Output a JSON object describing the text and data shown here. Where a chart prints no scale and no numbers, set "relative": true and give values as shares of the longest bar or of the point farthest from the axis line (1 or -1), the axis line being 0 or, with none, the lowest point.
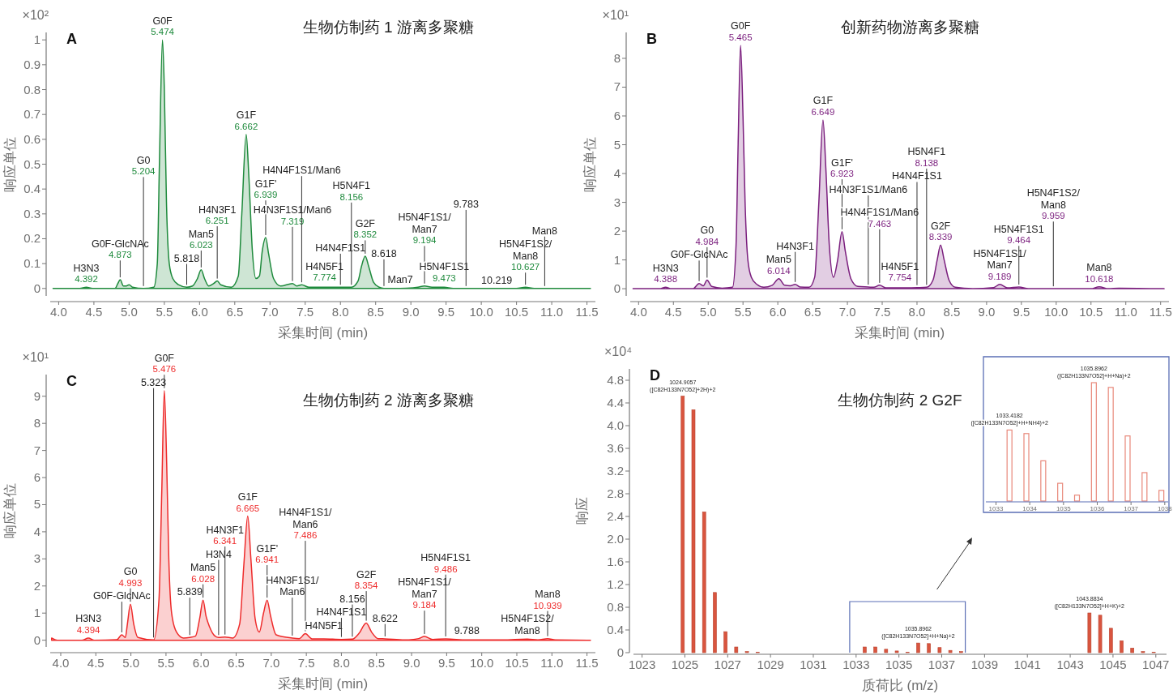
{
  "chart_data": [
    {
      "type": "area",
      "title": "生物仿制药 1 游离多聚糖",
      "xlabel": "采集时间 (min)",
      "ylabel": "响应单位",
      "color": "#1e8a3c",
      "xlim": [
        3.88,
        11.62
      ],
      "ylim": [
        -0.03,
        1.03
      ],
      "xticks": [
        {
          "value": 4,
          "label": "4.0"
        },
        4.5,
        {
          "value": 5,
          "label": "5.0"
        },
        5.5,
        {
          "value": 6,
          "label": "6.0"
        },
        6.5,
        {
          "value": 7,
          "label": "7.0"
        },
        7.5,
        {
          "value": 8,
          "label": "8.0"
        },
        8.5,
        {
          "value": 9,
          "label": "9.0"
        },
        9.5,
        {
          "value": 10,
          "label": "10.0"
        },
        10.5,
        {
          "value": 11,
          "label": "11.0"
        },
        11.5
      ],
      "yticks": [
        0,
        0.1,
        0.2,
        0.3,
        0.4,
        0.5,
        0.6,
        0.7,
        0.8,
        0.9,
        1
      ],
      "x": [
        3.92,
        4.3,
        4.392,
        4.48,
        4.8,
        4.84,
        4.873,
        4.92,
        4.96,
        5.0,
        5.05,
        5.204,
        5.35,
        5.4,
        5.43,
        5.474,
        5.5,
        5.53,
        5.57,
        5.62,
        5.7,
        5.818,
        5.9,
        5.97,
        6.023,
        6.07,
        6.13,
        6.2,
        6.251,
        6.3,
        6.45,
        6.55,
        6.6,
        6.662,
        6.7,
        6.75,
        6.8,
        6.85,
        6.89,
        6.939,
        6.98,
        7.05,
        7.15,
        7.319,
        7.38,
        7.45,
        7.55,
        7.774,
        8.0,
        8.156,
        8.25,
        8.3,
        8.352,
        8.4,
        8.47,
        8.55,
        8.618,
        8.85,
        9.1,
        9.194,
        9.3,
        9.473,
        9.6,
        9.783,
        10.219,
        10.5,
        10.627,
        10.75,
        10.9,
        11.55
      ],
      "values": [
        0,
        0,
        0.005,
        0,
        0,
        0.02,
        0.035,
        0.01,
        0.01,
        0.015,
        0.005,
        0,
        0.005,
        0.1,
        0.5,
        1.0,
        0.8,
        0.35,
        0.1,
        0.04,
        0.015,
        0.005,
        0.01,
        0.04,
        0.075,
        0.04,
        0.01,
        0.02,
        0.03,
        0.015,
        0.005,
        0.05,
        0.3,
        0.62,
        0.45,
        0.15,
        0.04,
        0.05,
        0.15,
        0.205,
        0.14,
        0.04,
        0.01,
        0.02,
        0.01,
        0.015,
        0.005,
        0.005,
        0.005,
        0.005,
        0.03,
        0.09,
        0.13,
        0.09,
        0.025,
        0.005,
        0,
        0,
        0.005,
        0.01,
        0.005,
        0.005,
        0,
        0,
        0,
        0,
        0.005,
        0,
        0,
        0
      ],
      "annotations": [
        "×10²",
        "A",
        {
          "text": "H3N3",
          "x": 4.392,
          "y": 0.005
        },
        {
          "text": "4.392",
          "x": 4.392,
          "y": 0.005
        },
        {
          "text": "G0F-GlcNAc",
          "x": 4.873,
          "y": 0.035
        },
        {
          "text": "4.873",
          "x": 4.873,
          "y": 0.035
        },
        {
          "text": "G0",
          "x": 5.204,
          "y": 0
        },
        {
          "text": "5.204",
          "x": 5.204,
          "y": 0
        },
        {
          "text": "G0F",
          "x": 5.474,
          "y": 1.0
        },
        {
          "text": "5.474",
          "x": 5.474,
          "y": 1.0
        },
        {
          "text": "5.818",
          "x": 5.818,
          "y": 0.005
        },
        {
          "text": "Man5",
          "x": 6.023,
          "y": 0.075
        },
        {
          "text": "6.023",
          "x": 6.023,
          "y": 0.075
        },
        {
          "text": "H4N3F1",
          "x": 6.251,
          "y": 0.03
        },
        {
          "text": "6.251",
          "x": 6.251,
          "y": 0.03
        },
        {
          "text": "G1F",
          "x": 6.662,
          "y": 0.62
        },
        {
          "text": "6.662",
          "x": 6.662,
          "y": 0.62
        },
        {
          "text": "G1F'",
          "x": 6.939,
          "y": 0.205
        },
        {
          "text": "6.939",
          "x": 6.939,
          "y": 0.205
        },
        {
          "text": "H4N3F1S1/Man6",
          "x": 7.319,
          "y": 0.02
        },
        {
          "text": "7.319",
          "x": 7.319,
          "y": 0.02
        },
        {
          "text": "H4N4F1S1/Man6",
          "x": 7.45,
          "y": 0.015
        },
        {
          "text": "H4N5F1",
          "x": 7.774,
          "y": 0.005
        },
        {
          "text": "7.774",
          "x": 7.774,
          "y": 0.005
        },
        {
          "text": "H4N4F1S1",
          "x": 8.0,
          "y": 0.005
        },
        {
          "text": "H5N4F1",
          "x": 8.156,
          "y": 0.005
        },
        {
          "text": "8.156",
          "x": 8.156,
          "y": 0.005
        },
        {
          "text": "G2F",
          "x": 8.352,
          "y": 0.13
        },
        {
          "text": "8.352",
          "x": 8.352,
          "y": 0.13
        },
        {
          "text": "8.618",
          "x": 8.618,
          "y": 0
        },
        {
          "text": "Man7",
          "x": 8.85,
          "y": 0
        },
        {
          "text": "H5N4F1S1/\nMan7",
          "x": 9.194,
          "y": 0.01
        },
        {
          "text": "9.194",
          "x": 9.194,
          "y": 0.01
        },
        {
          "text": "H5N4F1S1",
          "x": 9.473,
          "y": 0.005
        },
        {
          "text": "9.473",
          "x": 9.473,
          "y": 0.005
        },
        {
          "text": "9.783",
          "x": 9.783,
          "y": 0
        },
        {
          "text": "10.219",
          "x": 10.219,
          "y": 0
        },
        {
          "text": "H5N4F1S2/\nMan8",
          "x": 10.627,
          "y": 0.005
        },
        {
          "text": "10.627",
          "x": 10.627,
          "y": 0.005
        },
        {
          "text": "Man8",
          "x": 10.9,
          "y": 0
        }
      ]
    },
    {
      "type": "area",
      "title": "创新药物游离多聚糖",
      "xlabel": "采集时间 (min)",
      "ylabel": "响应单位",
      "color": "#7b1f7e",
      "xlim": [
        3.88,
        11.62
      ],
      "ylim": [
        -0.25,
        8.9
      ],
      "xticks": [
        {
          "value": 4,
          "label": "4.0"
        },
        4.5,
        {
          "value": 5,
          "label": "5.0"
        },
        5.5,
        {
          "value": 6,
          "label": "6.0"
        },
        6.5,
        {
          "value": 7,
          "label": "7.0"
        },
        7.5,
        {
          "value": 8,
          "label": "8.0"
        },
        8.5,
        {
          "value": 9,
          "label": "9.0"
        },
        9.5,
        {
          "value": 10,
          "label": "10.0"
        },
        10.5,
        {
          "value": 11,
          "label": "11.0"
        },
        11.5
      ],
      "yticks": [
        0,
        1,
        2,
        3,
        4,
        5,
        6,
        7,
        8
      ],
      "x": [
        3.92,
        4.3,
        4.388,
        4.47,
        4.78,
        4.87,
        4.93,
        4.984,
        5.05,
        5.2,
        5.35,
        5.4,
        5.43,
        5.465,
        5.5,
        5.53,
        5.57,
        5.62,
        5.7,
        5.8,
        5.92,
        6.014,
        6.1,
        6.18,
        6.25,
        6.32,
        6.45,
        6.53,
        6.59,
        6.649,
        6.69,
        6.74,
        6.8,
        6.86,
        6.923,
        6.97,
        7.05,
        7.15,
        7.3,
        7.38,
        7.463,
        7.55,
        7.754,
        8.0,
        8.138,
        8.23,
        8.29,
        8.339,
        8.39,
        8.46,
        8.55,
        8.8,
        9.1,
        9.189,
        9.3,
        9.464,
        9.6,
        9.959,
        10.5,
        10.618,
        10.75,
        10.9,
        11.55
      ],
      "values": [
        0,
        0,
        0.05,
        0,
        0,
        0.18,
        0.1,
        0.3,
        0.08,
        0.02,
        0.05,
        1.5,
        5.0,
        8.45,
        6.0,
        3.0,
        1.0,
        0.4,
        0.15,
        0.05,
        0.12,
        0.35,
        0.12,
        0.1,
        0.15,
        0.06,
        0.05,
        0.4,
        3.0,
        5.86,
        4.2,
        1.5,
        0.4,
        1.0,
        1.98,
        1.3,
        0.35,
        0.08,
        0.06,
        0.05,
        0.12,
        0.03,
        0.03,
        0.04,
        0.05,
        0.3,
        1.0,
        1.52,
        1.0,
        0.3,
        0.05,
        0,
        0.04,
        0.15,
        0.03,
        0.06,
        0,
        0,
        0,
        0.07,
        0,
        0.02,
        0
      ],
      "annotations": [
        "×10¹",
        "B",
        {
          "text": "H3N3",
          "x": 4.388,
          "y": 0.05
        },
        {
          "text": "4.388",
          "x": 4.388,
          "y": 0.05
        },
        {
          "text": "G0F-GlcNAc",
          "x": 4.87,
          "y": 0.18
        },
        {
          "text": "G0",
          "x": 4.984,
          "y": 0.3
        },
        {
          "text": "4.984",
          "x": 4.984,
          "y": 0.3
        },
        {
          "text": "G0F",
          "x": 5.465,
          "y": 8.45
        },
        {
          "text": "5.465",
          "x": 5.465,
          "y": 8.45
        },
        {
          "text": "Man5",
          "x": 6.014,
          "y": 0.35
        },
        {
          "text": "6.014",
          "x": 6.014,
          "y": 0.35
        },
        {
          "text": "H4N3F1",
          "x": 6.25,
          "y": 0.15
        },
        {
          "text": "G1F",
          "x": 6.649,
          "y": 5.86
        },
        {
          "text": "6.649",
          "x": 6.649,
          "y": 5.86
        },
        {
          "text": "G1F'",
          "x": 6.923,
          "y": 1.98
        },
        {
          "text": "6.923",
          "x": 6.923,
          "y": 1.98
        },
        {
          "text": "H4N3F1S1/Man6",
          "x": 7.3,
          "y": 0.06
        },
        {
          "text": "H4N4F1S1/Man6",
          "x": 7.463,
          "y": 0.12
        },
        {
          "text": "7.463",
          "x": 7.463,
          "y": 0.12
        },
        {
          "text": "H4N5F1",
          "x": 7.754,
          "y": 0.03
        },
        {
          "text": "7.754",
          "x": 7.754,
          "y": 0.03
        },
        {
          "text": "H4N4F1S1",
          "x": 8.0,
          "y": 0.04
        },
        {
          "text": "H5N4F1",
          "x": 8.138,
          "y": 0.05
        },
        {
          "text": "8.138",
          "x": 8.138,
          "y": 0.05
        },
        {
          "text": "G2F",
          "x": 8.339,
          "y": 1.52
        },
        {
          "text": "8.339",
          "x": 8.339,
          "y": 1.52
        },
        {
          "text": "H5N4F1S1/\nMan7",
          "x": 9.189,
          "y": 0.15
        },
        {
          "text": "9.189",
          "x": 9.189,
          "y": 0.15
        },
        {
          "text": "H5N4F1S1",
          "x": 9.464,
          "y": 0.06
        },
        {
          "text": "9.464",
          "x": 9.464,
          "y": 0.06
        },
        {
          "text": "H5N4F1S2/\nMan8",
          "x": 9.959,
          "y": 0
        },
        {
          "text": "9.959",
          "x": 9.959,
          "y": 0
        },
        {
          "text": "Man8",
          "x": 10.618,
          "y": 0.07
        },
        {
          "text": "10.618",
          "x": 10.618,
          "y": 0.07
        }
      ]
    },
    {
      "type": "area",
      "title": "生物仿制药 2 游离多聚糖",
      "xlabel": "采集时间 (min)",
      "ylabel": "响应单位",
      "color": "#ee2b2b",
      "xlim": [
        3.85,
        11.62
      ],
      "ylim": [
        -0.25,
        9.8
      ],
      "xticks": [
        {
          "value": 4,
          "label": "4.0"
        },
        4.5,
        {
          "value": 5,
          "label": "5.0"
        },
        5.5,
        {
          "value": 6,
          "label": "6.0"
        },
        6.5,
        {
          "value": 7,
          "label": "7.0"
        },
        7.5,
        {
          "value": 8,
          "label": "8.0"
        },
        8.5,
        {
          "value": 9,
          "label": "9.0"
        },
        9.5,
        {
          "value": 10,
          "label": "10.0"
        },
        10.5,
        {
          "value": 11,
          "label": "11.0"
        },
        11.5
      ],
      "yticks": [
        0,
        1,
        2,
        3,
        4,
        5,
        6,
        7,
        8,
        9
      ],
      "x": [
        3.87,
        3.95,
        4.3,
        4.394,
        4.48,
        4.8,
        4.87,
        4.92,
        4.95,
        4.993,
        5.04,
        5.1,
        5.323,
        5.4,
        5.44,
        5.476,
        5.51,
        5.54,
        5.58,
        5.65,
        5.75,
        5.839,
        5.92,
        5.98,
        6.028,
        6.07,
        6.12,
        6.2,
        6.25,
        6.341,
        6.45,
        6.55,
        6.61,
        6.665,
        6.71,
        6.77,
        6.83,
        6.89,
        6.941,
        6.99,
        7.07,
        7.3,
        7.4,
        7.486,
        7.58,
        7.75,
        8.0,
        8.156,
        8.25,
        8.354,
        8.43,
        8.52,
        8.622,
        8.9,
        9.1,
        9.184,
        9.3,
        9.486,
        9.788,
        10.3,
        10.65,
        10.8,
        10.939,
        11.05,
        11.55
      ],
      "values": [
        0.08,
        0,
        0,
        0.08,
        0,
        0.02,
        0.2,
        0.1,
        0.6,
        1.33,
        0.6,
        0.1,
        0.01,
        1.5,
        5.5,
        9.21,
        6.5,
        3.0,
        1.0,
        0.3,
        0.08,
        0.1,
        0.15,
        0.8,
        1.48,
        0.9,
        0.5,
        0.15,
        0.1,
        0.12,
        0.08,
        0.6,
        2.8,
        4.58,
        3.0,
        0.8,
        0.3,
        1.0,
        1.48,
        0.9,
        0.2,
        0.08,
        0.06,
        0.24,
        0.05,
        0.05,
        0.03,
        0.04,
        0.25,
        0.63,
        0.3,
        0.06,
        0.05,
        0.01,
        0.06,
        0.14,
        0.03,
        0.05,
        0.01,
        0.01,
        0.04,
        0.01,
        0.06,
        0.01,
        0
      ],
      "annotations": [
        "×10¹",
        "C",
        {
          "text": "H3N3",
          "x": 4.394,
          "y": 0.08
        },
        {
          "text": "4.394",
          "x": 4.394,
          "y": 0.08
        },
        {
          "text": "G0F-GlcNAc",
          "x": 4.87,
          "y": 0.2
        },
        {
          "text": "G0",
          "x": 4.993,
          "y": 1.33
        },
        {
          "text": "4.993",
          "x": 4.993,
          "y": 1.33
        },
        {
          "text": "5.323",
          "x": 5.323,
          "y": 0.01
        },
        {
          "text": "G0F",
          "x": 5.476,
          "y": 9.21
        },
        {
          "text": "5.476",
          "x": 5.476,
          "y": 9.21
        },
        {
          "text": "5.839",
          "x": 5.839,
          "y": 0.1
        },
        {
          "text": "Man5",
          "x": 6.028,
          "y": 1.48
        },
        {
          "text": "6.028",
          "x": 6.028,
          "y": 1.48
        },
        {
          "text": "H3N4",
          "x": 6.25,
          "y": 0.1
        },
        {
          "text": "H4N3F1",
          "x": 6.341,
          "y": 0.12
        },
        {
          "text": "6.341",
          "x": 6.341,
          "y": 0.12
        },
        {
          "text": "G1F",
          "x": 6.665,
          "y": 4.58
        },
        {
          "text": "6.665",
          "x": 6.665,
          "y": 4.58
        },
        {
          "text": "G1F'",
          "x": 6.941,
          "y": 1.48
        },
        {
          "text": "6.941",
          "x": 6.941,
          "y": 1.48
        },
        {
          "text": "H4N3F1S1/\nMan6",
          "x": 7.3,
          "y": 0.08
        },
        {
          "text": "H4N4F1S1/\nMan6",
          "x": 7.486,
          "y": 0.24
        },
        {
          "text": "7.486",
          "x": 7.486,
          "y": 0.24
        },
        {
          "text": "H4N5F1",
          "x": 7.75,
          "y": 0.05
        },
        {
          "text": "H4N4F1S1",
          "x": 8.0,
          "y": 0.03
        },
        {
          "text": "8.156",
          "x": 8.156,
          "y": 0.04
        },
        {
          "text": "G2F",
          "x": 8.354,
          "y": 0.63
        },
        {
          "text": "8.354",
          "x": 8.354,
          "y": 0.63
        },
        {
          "text": "8.622",
          "x": 8.622,
          "y": 0.05
        },
        {
          "text": "H5N4F1S1/\nMan7",
          "x": 9.184,
          "y": 0.14
        },
        {
          "text": "9.184",
          "x": 9.184,
          "y": 0.14
        },
        {
          "text": "H5N4F1S1",
          "x": 9.486,
          "y": 0.05
        },
        {
          "text": "9.486",
          "x": 9.486,
          "y": 0.05
        },
        {
          "text": "9.788",
          "x": 9.788,
          "y": 0.01
        },
        {
          "text": "H5N4F1S2/\nMan8",
          "x": 10.65,
          "y": 0.04
        },
        {
          "text": "Man8",
          "x": 10.939,
          "y": 0.06
        },
        {
          "text": "10.939",
          "x": 10.939,
          "y": 0.06
        }
      ]
    },
    {
      "type": "bar",
      "title": "生物仿制药 2 G2F",
      "xlabel": "质荷比 (m/z)",
      "ylabel": "响应",
      "color": "#d9553f",
      "xlim": [
        1022.6,
        1047.5
      ],
      "ylim": [
        0,
        5.0
      ],
      "xticks": [
        1023,
        1025,
        1027,
        1029,
        1031,
        1033,
        1035,
        1037,
        1039,
        1041,
        1043,
        1045,
        1047
      ],
      "yticks": [
        0,
        0.4,
        0.8,
        1.2,
        1.6,
        {
          "value": 2,
          "label": "2.0"
        },
        2.4,
        2.8,
        3.2,
        3.6,
        {
          "value": 4,
          "label": "4.0"
        },
        4.4,
        4.8
      ],
      "x": [
        1024.9,
        1025.4,
        1025.9,
        1026.4,
        1026.9,
        1027.4,
        1027.9,
        1028.4,
        1033.4,
        1033.9,
        1034.4,
        1034.9,
        1035.4,
        1035.9,
        1036.4,
        1036.9,
        1037.4,
        1037.9,
        1043.9,
        1044.4,
        1044.9,
        1045.4,
        1045.9,
        1046.4,
        1046.9
      ],
      "values": [
        4.52,
        4.28,
        2.48,
        1.06,
        0.37,
        0.1,
        0.02,
        0.01,
        0.1,
        0.1,
        0.06,
        0.03,
        0.01,
        0.17,
        0.16,
        0.09,
        0.04,
        0.02,
        0.7,
        0.66,
        0.43,
        0.21,
        0.08,
        0.02,
        0.01
      ],
      "annotations": [
        "×10⁴",
        "D",
        {
          "text": "1024.9057\n([C82H133N7O52]+2H)+2",
          "x": 1024.9,
          "y": 4.52
        },
        {
          "text": "1035.8962\n([C82H133N7O52]+H+Na)+2",
          "x": 1035.9,
          "y": 0.17
        },
        {
          "text": "1043.8834\n([C82H133N7O52]+H+K)+2",
          "x": 1043.9,
          "y": 0.7
        }
      ]
    },
    {
      "type": "bar",
      "relative": true,
      "tick_labels": "x",
      "color": "#e8887a",
      "xlim": [
        1032.7,
        1038.1
      ],
      "xticks": [
        1033,
        1034,
        1035,
        1036,
        1037,
        1038
      ],
      "x": [
        1033.4,
        1033.9,
        1034.4,
        1034.9,
        1035.4,
        1035.9,
        1036.4,
        1036.9,
        1037.4,
        1037.9
      ],
      "values": [
        0.6,
        0.57,
        0.34,
        0.15,
        0.05,
        1,
        0.96,
        0.55,
        0.24,
        0.09
      ],
      "annotations": [
        {
          "text": "1033.4182\n([C82H133N7O52]+H+NH4)+2",
          "x": 1033.4,
          "y": 0.6
        },
        {
          "text": "1035.8962\n([C82H133N7O52]+H+Na)+2",
          "x": 1035.9,
          "y": 1
        }
      ]
    }
  ]
}
